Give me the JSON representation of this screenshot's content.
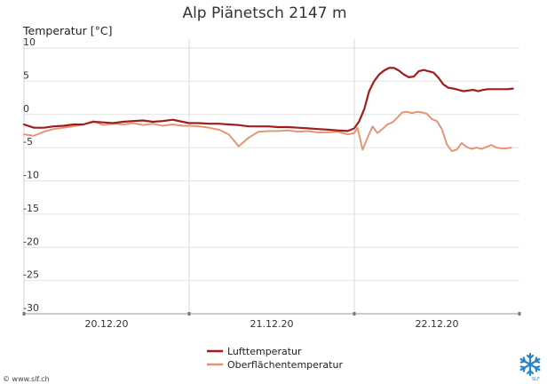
{
  "chart_data": {
    "type": "line",
    "title": "Alp Piänetsch 2147 m",
    "ylabel": "Temperatur [°C]",
    "xlabel": "",
    "ylim": [
      -30,
      10
    ],
    "yticks": [
      10,
      5,
      0,
      -5,
      -10,
      -15,
      -20,
      -25,
      -30
    ],
    "xlim": [
      0,
      3
    ],
    "xticks": [
      {
        "pos": 0.5,
        "label": "20.12.20"
      },
      {
        "pos": 1.5,
        "label": "21.12.20"
      },
      {
        "pos": 2.5,
        "label": "22.12.20"
      }
    ],
    "day_dividers": [
      1,
      2
    ],
    "grid": true,
    "legend_position": "bottom",
    "series": [
      {
        "name": "Lufttemperatur",
        "color": "#a01d1d",
        "x": [
          0,
          0.06,
          0.12,
          0.18,
          0.24,
          0.3,
          0.36,
          0.42,
          0.48,
          0.54,
          0.6,
          0.66,
          0.72,
          0.78,
          0.84,
          0.9,
          0.96,
          1.0,
          1.06,
          1.12,
          1.18,
          1.24,
          1.3,
          1.36,
          1.42,
          1.48,
          1.54,
          1.6,
          1.66,
          1.72,
          1.78,
          1.84,
          1.9,
          1.96,
          2.0,
          2.03,
          2.06,
          2.09,
          2.12,
          2.15,
          2.18,
          2.21,
          2.24,
          2.27,
          2.3,
          2.33,
          2.36,
          2.39,
          2.42,
          2.45,
          2.48,
          2.51,
          2.54,
          2.57,
          2.6,
          2.63,
          2.66,
          2.69,
          2.72,
          2.75,
          2.78,
          2.81,
          2.84,
          2.87,
          2.9,
          2.93,
          2.96
        ],
        "values": [
          -1.5,
          -2.0,
          -2.0,
          -1.8,
          -1.7,
          -1.5,
          -1.5,
          -1.1,
          -1.2,
          -1.3,
          -1.1,
          -1.0,
          -0.9,
          -1.1,
          -1.0,
          -0.8,
          -1.1,
          -1.3,
          -1.3,
          -1.4,
          -1.4,
          -1.5,
          -1.6,
          -1.8,
          -1.8,
          -1.8,
          -1.9,
          -1.9,
          -2.0,
          -2.1,
          -2.2,
          -2.3,
          -2.4,
          -2.5,
          -2.1,
          -1.0,
          0.8,
          3.5,
          5.0,
          6.0,
          6.6,
          7.0,
          7.0,
          6.6,
          6.0,
          5.6,
          5.7,
          6.5,
          6.7,
          6.5,
          6.3,
          5.5,
          4.5,
          4.0,
          3.9,
          3.7,
          3.5,
          3.6,
          3.7,
          3.5,
          3.7,
          3.8,
          3.8,
          3.8,
          3.8,
          3.8,
          3.9
        ]
      },
      {
        "name": "Oberflächentemperatur",
        "color": "#e39373",
        "x": [
          0,
          0.06,
          0.12,
          0.18,
          0.24,
          0.3,
          0.36,
          0.42,
          0.48,
          0.54,
          0.6,
          0.66,
          0.72,
          0.78,
          0.84,
          0.9,
          0.96,
          1.0,
          1.06,
          1.12,
          1.18,
          1.24,
          1.3,
          1.36,
          1.42,
          1.48,
          1.54,
          1.6,
          1.66,
          1.72,
          1.78,
          1.84,
          1.9,
          1.96,
          2.0,
          2.02,
          2.05,
          2.08,
          2.11,
          2.14,
          2.17,
          2.2,
          2.23,
          2.26,
          2.29,
          2.32,
          2.35,
          2.38,
          2.41,
          2.44,
          2.47,
          2.5,
          2.53,
          2.56,
          2.59,
          2.62,
          2.65,
          2.68,
          2.71,
          2.74,
          2.77,
          2.8,
          2.83,
          2.86,
          2.89,
          2.92,
          2.95
        ],
        "values": [
          -3.0,
          -3.2,
          -2.6,
          -2.2,
          -2.0,
          -1.8,
          -1.5,
          -1.0,
          -1.6,
          -1.4,
          -1.5,
          -1.3,
          -1.6,
          -1.4,
          -1.7,
          -1.5,
          -1.7,
          -1.7,
          -1.8,
          -2.0,
          -2.3,
          -3.0,
          -4.8,
          -3.5,
          -2.6,
          -2.5,
          -2.5,
          -2.4,
          -2.6,
          -2.5,
          -2.7,
          -2.7,
          -2.6,
          -3.0,
          -2.8,
          -2.0,
          -5.3,
          -3.5,
          -1.8,
          -2.8,
          -2.2,
          -1.5,
          -1.2,
          -0.5,
          0.3,
          0.4,
          0.2,
          0.4,
          0.3,
          0.1,
          -0.7,
          -1.0,
          -2.2,
          -4.5,
          -5.5,
          -5.3,
          -4.3,
          -4.9,
          -5.2,
          -5.0,
          -5.2,
          -4.9,
          -4.6,
          -5.0,
          -5.1,
          -5.1,
          -5.0
        ]
      }
    ]
  },
  "footer": {
    "copyright": "© www.slf.ch",
    "logo_text": "SLF"
  }
}
